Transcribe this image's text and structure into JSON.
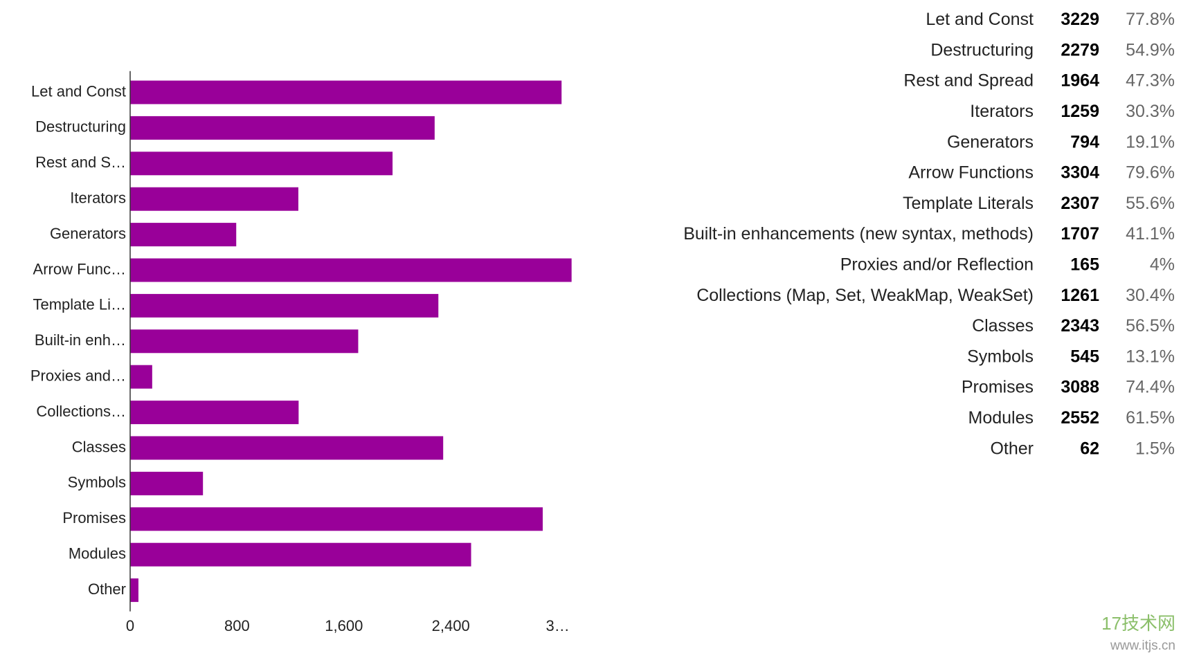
{
  "chart_data": {
    "type": "hbar",
    "categories": [
      "Let and Const",
      "Destructuring",
      "Rest and S…",
      "Iterators",
      "Generators",
      "Arrow Func…",
      "Template Li…",
      "Built-in enh…",
      "Proxies and…",
      "Collections…",
      "Classes",
      "Symbols",
      "Promises",
      "Modules",
      "Other"
    ],
    "values": [
      3229,
      2279,
      1964,
      1259,
      794,
      3304,
      2307,
      1707,
      165,
      1261,
      2343,
      545,
      3088,
      2552,
      62
    ],
    "color": "#990099",
    "xlim": [
      0,
      3400
    ],
    "xticks": [
      0,
      {
        "value": 800,
        "label": "800"
      },
      {
        "value": 1600,
        "label": "1,600"
      },
      {
        "value": 2400,
        "label": "2,400"
      },
      {
        "value": 3200,
        "label": "3…"
      }
    ],
    "grid": false,
    "table": {
      "labels": [
        "Let and Const",
        "Destructuring",
        "Rest and Spread",
        "Iterators",
        "Generators",
        "Arrow Functions",
        "Template Literals",
        "Built-in enhancements (new syntax, methods)",
        "Proxies and/or Reflection",
        "Collections (Map, Set, WeakMap, WeakSet)",
        "Classes",
        "Symbols",
        "Promises",
        "Modules",
        "Other"
      ],
      "percents": [
        "77.8%",
        "54.9%",
        "47.3%",
        "30.3%",
        "19.1%",
        "79.6%",
        "55.6%",
        "41.1%",
        "4%",
        "30.4%",
        "56.5%",
        "13.1%",
        "74.4%",
        "61.5%",
        "1.5%"
      ]
    }
  },
  "watermark": {
    "logo": "17技术网",
    "url": "www.itjs.cn"
  }
}
